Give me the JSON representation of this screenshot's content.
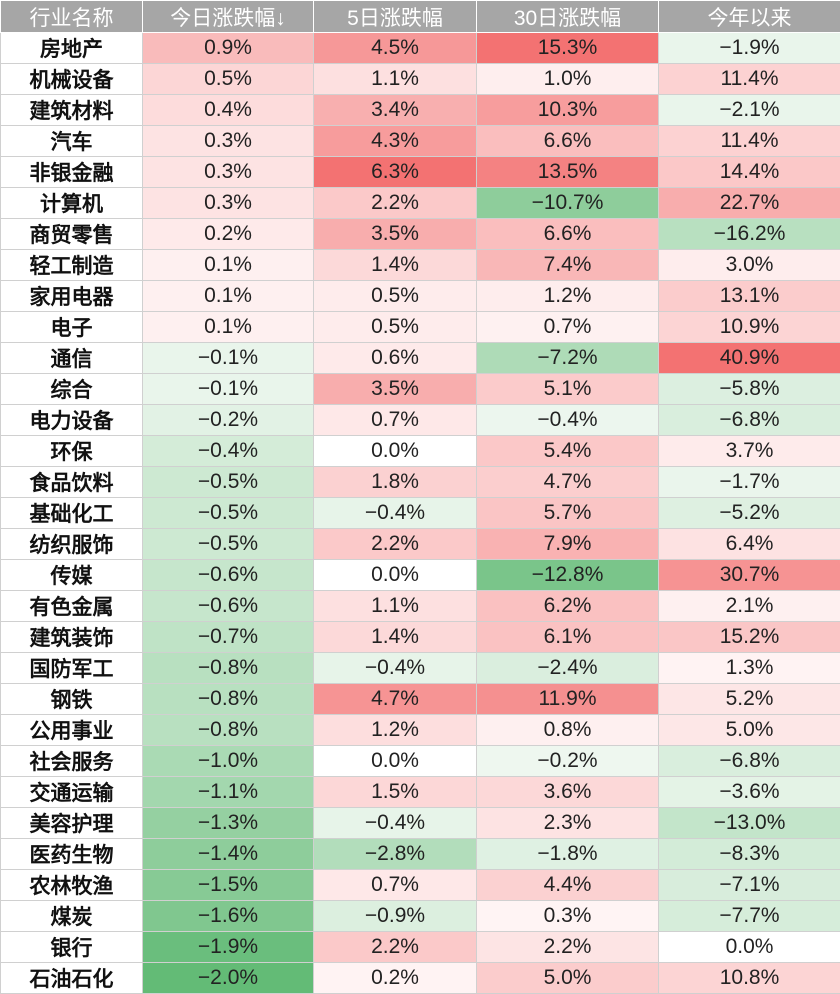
{
  "chart_data": {
    "type": "table",
    "columns": [
      "行业名称",
      "今日涨跌幅↓",
      "5日涨跌幅",
      "30日涨跌幅",
      "今年以来"
    ],
    "rows": [
      {
        "name": "房地产",
        "values": [
          0.9,
          4.5,
          15.3,
          -1.9
        ]
      },
      {
        "name": "机械设备",
        "values": [
          0.5,
          1.1,
          1.0,
          11.4
        ]
      },
      {
        "name": "建筑材料",
        "values": [
          0.4,
          3.4,
          10.3,
          -2.1
        ]
      },
      {
        "name": "汽车",
        "values": [
          0.3,
          4.3,
          6.6,
          11.4
        ]
      },
      {
        "name": "非银金融",
        "values": [
          0.3,
          6.3,
          13.5,
          14.4
        ]
      },
      {
        "name": "计算机",
        "values": [
          0.3,
          2.2,
          -10.7,
          22.7
        ]
      },
      {
        "name": "商贸零售",
        "values": [
          0.2,
          3.5,
          6.6,
          -16.2
        ]
      },
      {
        "name": "轻工制造",
        "values": [
          0.1,
          1.4,
          7.4,
          3.0
        ]
      },
      {
        "name": "家用电器",
        "values": [
          0.1,
          0.5,
          1.2,
          13.1
        ]
      },
      {
        "name": "电子",
        "values": [
          0.1,
          0.5,
          0.7,
          10.9
        ]
      },
      {
        "name": "通信",
        "values": [
          -0.1,
          0.6,
          -7.2,
          40.9
        ]
      },
      {
        "name": "综合",
        "values": [
          -0.1,
          3.5,
          5.1,
          -5.8
        ]
      },
      {
        "name": "电力设备",
        "values": [
          -0.2,
          0.7,
          -0.4,
          -6.8
        ]
      },
      {
        "name": "环保",
        "values": [
          -0.4,
          0.0,
          5.4,
          3.7
        ]
      },
      {
        "name": "食品饮料",
        "values": [
          -0.5,
          1.8,
          4.7,
          -1.7
        ]
      },
      {
        "name": "基础化工",
        "values": [
          -0.5,
          -0.4,
          5.7,
          -5.2
        ]
      },
      {
        "name": "纺织服饰",
        "values": [
          -0.5,
          2.2,
          7.9,
          6.4
        ]
      },
      {
        "name": "传媒",
        "values": [
          -0.6,
          0.0,
          -12.8,
          30.7
        ]
      },
      {
        "name": "有色金属",
        "values": [
          -0.6,
          1.1,
          6.2,
          2.1
        ]
      },
      {
        "name": "建筑装饰",
        "values": [
          -0.7,
          1.4,
          6.1,
          15.2
        ]
      },
      {
        "name": "国防军工",
        "values": [
          -0.8,
          -0.4,
          -2.4,
          1.3
        ]
      },
      {
        "name": "钢铁",
        "values": [
          -0.8,
          4.7,
          11.9,
          5.2
        ]
      },
      {
        "name": "公用事业",
        "values": [
          -0.8,
          1.2,
          0.8,
          5.0
        ]
      },
      {
        "name": "社会服务",
        "values": [
          -1.0,
          0.0,
          -0.2,
          -6.8
        ]
      },
      {
        "name": "交通运输",
        "values": [
          -1.1,
          1.5,
          3.6,
          -3.6
        ]
      },
      {
        "name": "美容护理",
        "values": [
          -1.3,
          -0.4,
          2.3,
          -13.0
        ]
      },
      {
        "name": "医药生物",
        "values": [
          -1.4,
          -2.8,
          -1.8,
          -8.3
        ]
      },
      {
        "name": "农林牧渔",
        "values": [
          -1.5,
          0.7,
          4.4,
          -7.1
        ]
      },
      {
        "name": "煤炭",
        "values": [
          -1.6,
          -0.9,
          0.3,
          -7.7
        ]
      },
      {
        "name": "银行",
        "values": [
          -1.9,
          2.2,
          2.2,
          0.0
        ]
      },
      {
        "name": "石油石化",
        "values": [
          -2.0,
          0.2,
          5.0,
          10.8
        ]
      }
    ],
    "colors": {
      "header_bg": "#a6a6a6",
      "positive": "#f26b6b",
      "negative": "#5cb870",
      "neutral": "#ffffff"
    }
  }
}
